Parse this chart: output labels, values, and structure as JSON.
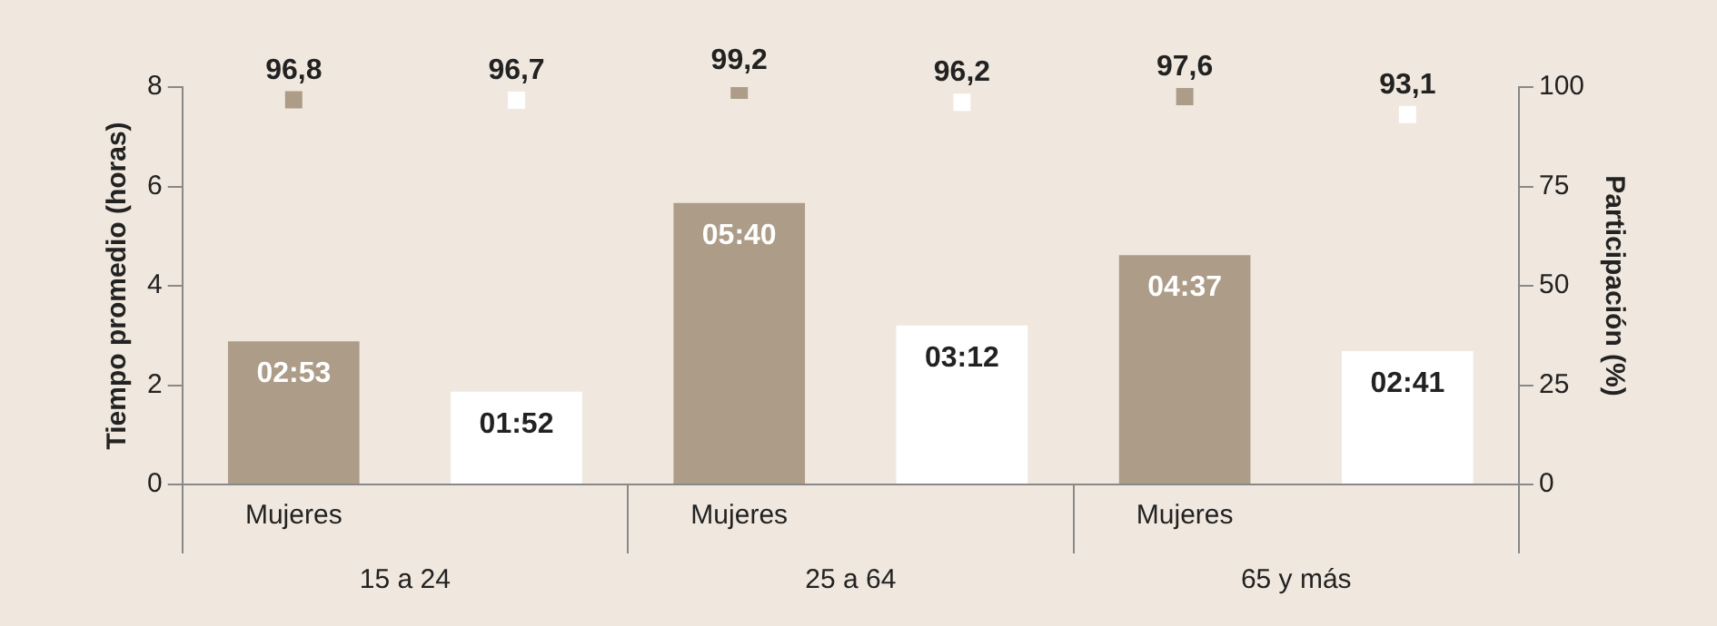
{
  "chart_data": {
    "type": "bar",
    "categories": [
      "15 a 24",
      "25 a 64",
      "65 y más"
    ],
    "ylabel": "Tiempo promedio (horas)",
    "y2label": "Participación (%)",
    "ylim": [
      0,
      8
    ],
    "yticks": [
      0,
      2,
      4,
      6,
      8
    ],
    "y2lim": [
      0,
      100
    ],
    "y2ticks": [
      0,
      25,
      50,
      75,
      100
    ],
    "grid": false,
    "legend": false,
    "marker": "square",
    "series": [
      {
        "name": "Mujeres",
        "color": "#ac9c88",
        "values": [
          2.883,
          5.667,
          4.617
        ],
        "value_labels": [
          "02:53",
          "05:40",
          "04:37"
        ]
      },
      {
        "color": "#ffffff",
        "values": [
          1.867,
          3.2,
          2.683
        ],
        "value_labels": [
          "01:52",
          "03:12",
          "02:41"
        ]
      },
      {
        "type": "scatter",
        "axis": "y2",
        "color": "#ac9c88",
        "x": [
          "15 a 24",
          "25 a 64",
          "65 y más"
        ],
        "values": [
          96.8,
          99.2,
          97.6
        ],
        "value_labels": [
          "96,8",
          "99,2",
          "97,6"
        ]
      },
      {
        "type": "scatter",
        "axis": "y2",
        "color": "#ffffff",
        "x": [
          "15 a 24",
          "25 a 64",
          "65 y más"
        ],
        "values": [
          96.7,
          96.2,
          93.1
        ],
        "value_labels": [
          "96,7",
          "96,2",
          "93,1"
        ]
      }
    ]
  }
}
